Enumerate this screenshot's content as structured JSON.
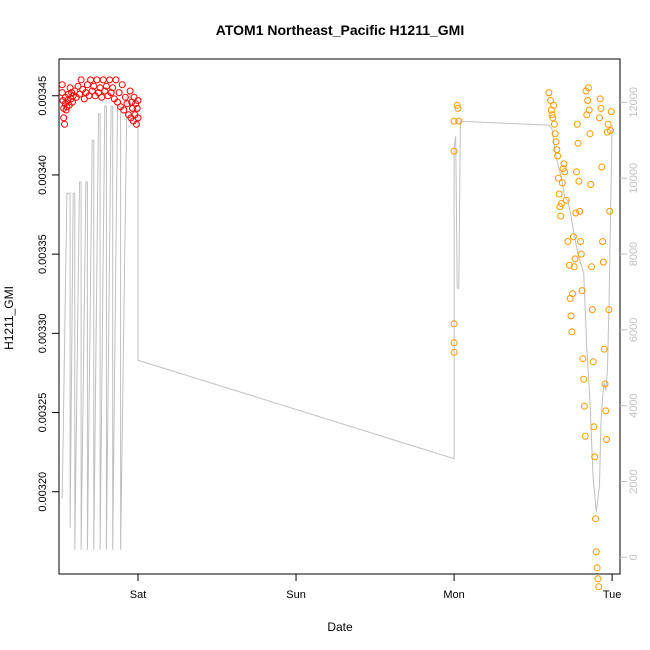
{
  "chart_data": {
    "type": "scatter",
    "title": "ATOM1 Northeast_Pacific H1211_GMI",
    "xlabel": "Date",
    "ylabel": "H1211_GMI",
    "x_unit": "days",
    "x_ticks": [
      {
        "label": "Sat",
        "value": 1
      },
      {
        "label": "Sun",
        "value": 2
      },
      {
        "label": "Mon",
        "value": 3
      },
      {
        "label": "Tue",
        "value": 4
      }
    ],
    "xlim": [
      0.5,
      4.05
    ],
    "ylim": [
      0.003155,
      0.003465
    ],
    "y_ticks": [
      "0.00320",
      "0.00325",
      "0.00330",
      "0.00335",
      "0.00340",
      "0.00345"
    ],
    "y2lim": [
      -150,
      12800
    ],
    "y2_ticks": [
      "0",
      "2000",
      "4000",
      "6000",
      "8000",
      "10000",
      "12000"
    ],
    "grid": false,
    "legend": "none",
    "colors": {
      "series1": "#ff0000",
      "series2": "#ff9900",
      "altitude": "#c0c0c0"
    },
    "series": [
      {
        "color": "#ff0000",
        "points": [
          [
            0.52,
            0.003457
          ],
          [
            0.52,
            0.003452
          ],
          [
            0.525,
            0.003447
          ],
          [
            0.53,
            0.003442
          ],
          [
            0.53,
            0.003436
          ],
          [
            0.535,
            0.003432
          ],
          [
            0.54,
            0.003445
          ],
          [
            0.54,
            0.003449
          ],
          [
            0.545,
            0.003441
          ],
          [
            0.55,
            0.003443
          ],
          [
            0.555,
            0.003447
          ],
          [
            0.56,
            0.003451
          ],
          [
            0.565,
            0.003444
          ],
          [
            0.57,
            0.003455
          ],
          [
            0.575,
            0.003448
          ],
          [
            0.58,
            0.003452
          ],
          [
            0.585,
            0.003446
          ],
          [
            0.59,
            0.00345
          ],
          [
            0.6,
            0.003453
          ],
          [
            0.61,
            0.003449
          ],
          [
            0.62,
            0.003456
          ],
          [
            0.63,
            0.003451
          ],
          [
            0.64,
            0.00346
          ],
          [
            0.65,
            0.003454
          ],
          [
            0.66,
            0.003448
          ],
          [
            0.67,
            0.003452
          ],
          [
            0.68,
            0.003457
          ],
          [
            0.69,
            0.00345
          ],
          [
            0.7,
            0.00346
          ],
          [
            0.71,
            0.003453
          ],
          [
            0.72,
            0.003456
          ],
          [
            0.73,
            0.00345
          ],
          [
            0.74,
            0.00346
          ],
          [
            0.75,
            0.003452
          ],
          [
            0.76,
            0.003455
          ],
          [
            0.77,
            0.003449
          ],
          [
            0.78,
            0.00346
          ],
          [
            0.79,
            0.003453
          ],
          [
            0.8,
            0.003456
          ],
          [
            0.81,
            0.00345
          ],
          [
            0.82,
            0.00346
          ],
          [
            0.83,
            0.003452
          ],
          [
            0.84,
            0.003455
          ],
          [
            0.85,
            0.003448
          ],
          [
            0.86,
            0.00346
          ],
          [
            0.87,
            0.003446
          ],
          [
            0.88,
            0.003452
          ],
          [
            0.89,
            0.003443
          ],
          [
            0.9,
            0.003457
          ],
          [
            0.91,
            0.003441
          ],
          [
            0.92,
            0.003449
          ],
          [
            0.93,
            0.003445
          ],
          [
            0.94,
            0.003438
          ],
          [
            0.95,
            0.003453
          ],
          [
            0.955,
            0.003436
          ],
          [
            0.96,
            0.003446
          ],
          [
            0.965,
            0.003442
          ],
          [
            0.97,
            0.003434
          ],
          [
            0.975,
            0.003449
          ],
          [
            0.98,
            0.003438
          ],
          [
            0.985,
            0.003445
          ],
          [
            0.99,
            0.003432
          ],
          [
            0.995,
            0.003442
          ],
          [
            1.0,
            0.003436
          ],
          [
            1.0,
            0.003447
          ]
        ]
      },
      {
        "color": "#ff9900",
        "points": [
          [
            3.0,
            0.003434
          ],
          [
            3.0,
            0.003415
          ],
          [
            3.0,
            0.003306
          ],
          [
            3.0,
            0.003294
          ],
          [
            3.0,
            0.003288
          ],
          [
            3.02,
            0.003444
          ],
          [
            3.025,
            0.003442
          ],
          [
            3.03,
            0.003434
          ],
          [
            3.6,
            0.003452
          ],
          [
            3.61,
            0.003447
          ],
          [
            3.615,
            0.003441
          ],
          [
            3.62,
            0.003438
          ],
          [
            3.625,
            0.003436
          ],
          [
            3.63,
            0.003444
          ],
          [
            3.635,
            0.003432
          ],
          [
            3.64,
            0.003426
          ],
          [
            3.645,
            0.003421
          ],
          [
            3.65,
            0.003416
          ],
          [
            3.655,
            0.003412
          ],
          [
            3.66,
            0.003398
          ],
          [
            3.665,
            0.003388
          ],
          [
            3.67,
            0.00338
          ],
          [
            3.675,
            0.003374
          ],
          [
            3.68,
            0.003382
          ],
          [
            3.685,
            0.003395
          ],
          [
            3.69,
            0.003404
          ],
          [
            3.695,
            0.003407
          ],
          [
            3.7,
            0.003402
          ],
          [
            3.71,
            0.003384
          ],
          [
            3.72,
            0.003358
          ],
          [
            3.73,
            0.003343
          ],
          [
            3.735,
            0.003322
          ],
          [
            3.74,
            0.003311
          ],
          [
            3.745,
            0.003301
          ],
          [
            3.75,
            0.003325
          ],
          [
            3.755,
            0.003361
          ],
          [
            3.76,
            0.003342
          ],
          [
            3.765,
            0.003347
          ],
          [
            3.77,
            0.003376
          ],
          [
            3.775,
            0.003402
          ],
          [
            3.78,
            0.003432
          ],
          [
            3.785,
            0.00342
          ],
          [
            3.79,
            0.003396
          ],
          [
            3.795,
            0.003377
          ],
          [
            3.8,
            0.003358
          ],
          [
            3.805,
            0.00335
          ],
          [
            3.81,
            0.003327
          ],
          [
            3.815,
            0.003284
          ],
          [
            3.82,
            0.003271
          ],
          [
            3.825,
            0.003254
          ],
          [
            3.83,
            0.003235
          ],
          [
            3.835,
            0.003453
          ],
          [
            3.84,
            0.003438
          ],
          [
            3.845,
            0.003447
          ],
          [
            3.85,
            0.003455
          ],
          [
            3.855,
            0.003441
          ],
          [
            3.86,
            0.003426
          ],
          [
            3.865,
            0.003394
          ],
          [
            3.87,
            0.003342
          ],
          [
            3.875,
            0.003315
          ],
          [
            3.88,
            0.003282
          ],
          [
            3.885,
            0.003241
          ],
          [
            3.89,
            0.003222
          ],
          [
            3.895,
            0.003183
          ],
          [
            3.9,
            0.003162
          ],
          [
            3.905,
            0.003152
          ],
          [
            3.91,
            0.003145
          ],
          [
            3.915,
            0.00314
          ],
          [
            3.92,
            0.003436
          ],
          [
            3.925,
            0.003448
          ],
          [
            3.93,
            0.003442
          ],
          [
            3.935,
            0.003405
          ],
          [
            3.94,
            0.003358
          ],
          [
            3.945,
            0.003345
          ],
          [
            3.95,
            0.00329
          ],
          [
            3.955,
            0.003268
          ],
          [
            3.96,
            0.003251
          ],
          [
            3.965,
            0.003233
          ],
          [
            3.97,
            0.003427
          ],
          [
            3.975,
            0.003432
          ],
          [
            3.98,
            0.003315
          ],
          [
            3.985,
            0.003377
          ],
          [
            3.99,
            0.003428
          ],
          [
            3.995,
            0.00344
          ]
        ]
      }
    ],
    "altitude_line": [
      [
        0.52,
        1550
      ],
      [
        0.55,
        9600
      ],
      [
        0.57,
        9600
      ],
      [
        0.57,
        780
      ],
      [
        0.59,
        9600
      ],
      [
        0.6,
        9600
      ],
      [
        0.6,
        200
      ],
      [
        0.63,
        9900
      ],
      [
        0.64,
        9900
      ],
      [
        0.64,
        200
      ],
      [
        0.67,
        9900
      ],
      [
        0.68,
        9900
      ],
      [
        0.68,
        200
      ],
      [
        0.71,
        11000
      ],
      [
        0.72,
        11000
      ],
      [
        0.72,
        200
      ],
      [
        0.75,
        11700
      ],
      [
        0.76,
        11700
      ],
      [
        0.76,
        200
      ],
      [
        0.79,
        11900
      ],
      [
        0.8,
        11900
      ],
      [
        0.8,
        200
      ],
      [
        0.83,
        11900
      ],
      [
        0.84,
        11900
      ],
      [
        0.84,
        200
      ],
      [
        0.87,
        11900
      ],
      [
        0.89,
        11900
      ],
      [
        0.89,
        200
      ],
      [
        0.93,
        12200
      ],
      [
        0.95,
        12200
      ],
      [
        0.95,
        11800
      ],
      [
        0.98,
        11800
      ],
      [
        1.0,
        11800
      ],
      [
        1.0,
        5200
      ],
      [
        3.0,
        2600
      ],
      [
        3.0,
        10800
      ],
      [
        3.01,
        11100
      ],
      [
        3.02,
        7100
      ],
      [
        3.03,
        7100
      ],
      [
        3.04,
        11500
      ],
      [
        3.6,
        11400
      ],
      [
        3.62,
        11300
      ],
      [
        3.63,
        11000
      ],
      [
        3.64,
        10700
      ],
      [
        3.66,
        10300
      ],
      [
        3.68,
        10000
      ],
      [
        3.7,
        9500
      ],
      [
        3.72,
        9400
      ],
      [
        3.74,
        9000
      ],
      [
        3.76,
        8500
      ],
      [
        3.79,
        7900
      ],
      [
        3.82,
        7500
      ],
      [
        3.84,
        5500
      ],
      [
        3.86,
        4100
      ],
      [
        3.88,
        2100
      ],
      [
        3.9,
        1200
      ],
      [
        3.92,
        1900
      ],
      [
        3.93,
        3600
      ],
      [
        3.94,
        4200
      ],
      [
        3.95,
        4600
      ],
      [
        3.96,
        4400
      ],
      [
        3.97,
        4900
      ],
      [
        3.98,
        6500
      ],
      [
        4.0,
        11400
      ]
    ]
  }
}
